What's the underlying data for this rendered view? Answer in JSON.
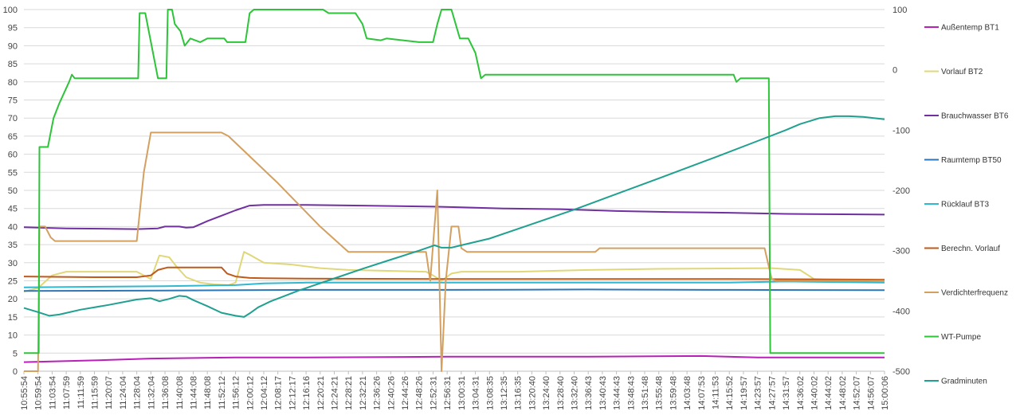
{
  "chart_data": {
    "type": "line",
    "title": "",
    "xlabel": "",
    "ylabel": "",
    "y2label": "",
    "ylim": [
      0,
      100
    ],
    "y2lim": [
      -500,
      100
    ],
    "yticks": [
      0,
      5,
      10,
      15,
      20,
      25,
      30,
      35,
      40,
      45,
      50,
      55,
      60,
      65,
      70,
      75,
      80,
      85,
      90,
      95,
      100
    ],
    "y2ticks": [
      -500,
      -400,
      -300,
      -200,
      -100,
      0,
      100
    ],
    "grid": "horizontal",
    "legend_position": "right",
    "x_tick_labels": [
      "10:55:54",
      "10:59:54",
      "11:03:54",
      "11:07:59",
      "11:11:59",
      "11:15:59",
      "11:20:07",
      "11:24:04",
      "11:28:04",
      "11:32:04",
      "11:36:08",
      "11:40:08",
      "11:44:08",
      "11:48:08",
      "11:52:12",
      "11:56:12",
      "12:00:12",
      "12:04:12",
      "12:08:17",
      "12:12:17",
      "12:16:16",
      "12:20:21",
      "12:24:21",
      "12:28:21",
      "12:32:21",
      "12:36:26",
      "12:40:26",
      "12:44:26",
      "12:48:26",
      "12:52:31",
      "12:56:31",
      "13:00:31",
      "13:04:31",
      "13:08:35",
      "13:12:35",
      "13:16:35",
      "13:20:40",
      "13:24:40",
      "13:28:40",
      "13:32:40",
      "13:36:43",
      "13:40:43",
      "13:44:43",
      "13:48:43",
      "13:51:48",
      "13:55:48",
      "13:59:48",
      "14:03:48",
      "14:07:53",
      "14:11:53",
      "14:15:52",
      "14:19:57",
      "14:23:57",
      "14:27:57",
      "14:31:57",
      "14:36:02",
      "14:40:02",
      "14:44:02",
      "14:48:02",
      "14:52:07",
      "14:56:07",
      "15:00:06"
    ],
    "series": [
      {
        "name": "Außentemp BT1",
        "color": "#b820b8",
        "axis": "left",
        "points": [
          [
            0,
            2.5
          ],
          [
            5,
            3
          ],
          [
            9,
            3.5
          ],
          [
            15,
            3.8
          ],
          [
            20,
            3.8
          ],
          [
            30,
            4
          ],
          [
            40,
            4
          ],
          [
            48,
            4.2
          ],
          [
            52,
            3.8
          ],
          [
            61,
            3.8
          ]
        ]
      },
      {
        "name": "Vorlauf BT2",
        "color": "#e0d878",
        "axis": "left",
        "points": [
          [
            0,
            22
          ],
          [
            1,
            23
          ],
          [
            2,
            26.5
          ],
          [
            3,
            27.5
          ],
          [
            5,
            27.5
          ],
          [
            8,
            27.5
          ],
          [
            9,
            25.5
          ],
          [
            9.6,
            32
          ],
          [
            10.3,
            31.5
          ],
          [
            10.8,
            29
          ],
          [
            11.5,
            26
          ],
          [
            12.5,
            24.5
          ],
          [
            13.5,
            24
          ],
          [
            14.5,
            23.8
          ],
          [
            15,
            24.5
          ],
          [
            15.6,
            33
          ],
          [
            16.1,
            32
          ],
          [
            17,
            30
          ],
          [
            19,
            29.5
          ],
          [
            21,
            28.5
          ],
          [
            23,
            28
          ],
          [
            28.5,
            27.5
          ],
          [
            29,
            26.5
          ],
          [
            29.6,
            25
          ],
          [
            30.3,
            27
          ],
          [
            31,
            27.5
          ],
          [
            35,
            27.5
          ],
          [
            40,
            28
          ],
          [
            45,
            28.3
          ],
          [
            53,
            28.5
          ],
          [
            55,
            28
          ],
          [
            56,
            25.5
          ],
          [
            58,
            25
          ],
          [
            61,
            24.8
          ]
        ]
      },
      {
        "name": "Brauchwasser BT6",
        "color": "#7030a0",
        "axis": "left",
        "points": [
          [
            0,
            39.8
          ],
          [
            3,
            39.5
          ],
          [
            8,
            39.3
          ],
          [
            9.5,
            39.5
          ],
          [
            10,
            40
          ],
          [
            11,
            40
          ],
          [
            11.5,
            39.7
          ],
          [
            12,
            39.8
          ],
          [
            13,
            41.5
          ],
          [
            14,
            43
          ],
          [
            15,
            44.5
          ],
          [
            16,
            45.8
          ],
          [
            17,
            46
          ],
          [
            20,
            46
          ],
          [
            24,
            45.8
          ],
          [
            29,
            45.5
          ],
          [
            31,
            45.3
          ],
          [
            34,
            45
          ],
          [
            38,
            44.8
          ],
          [
            42,
            44.3
          ],
          [
            46,
            44
          ],
          [
            50,
            43.8
          ],
          [
            54,
            43.5
          ],
          [
            58,
            43.4
          ],
          [
            61,
            43.3
          ]
        ]
      },
      {
        "name": "Raumtemp BT50",
        "color": "#2e75b6",
        "axis": "left",
        "points": [
          [
            0,
            22.2
          ],
          [
            10,
            22.3
          ],
          [
            20,
            22.5
          ],
          [
            30,
            22.5
          ],
          [
            40,
            22.6
          ],
          [
            50,
            22.5
          ],
          [
            61,
            22.4
          ]
        ]
      },
      {
        "name": "Rücklauf BT3",
        "color": "#30b8d0",
        "axis": "left",
        "points": [
          [
            0,
            23.2
          ],
          [
            10,
            23.5
          ],
          [
            15,
            23.8
          ],
          [
            17,
            24.3
          ],
          [
            20,
            24.5
          ],
          [
            30,
            24.5
          ],
          [
            40,
            24.5
          ],
          [
            50,
            24.5
          ],
          [
            54,
            24.8
          ],
          [
            61,
            24.5
          ]
        ]
      },
      {
        "name": "Berechn. Vorlauf",
        "color": "#c05a1a",
        "axis": "left",
        "points": [
          [
            0,
            26.2
          ],
          [
            5,
            26
          ],
          [
            8,
            26
          ],
          [
            9,
            26.5
          ],
          [
            9.5,
            28
          ],
          [
            10.2,
            28.7
          ],
          [
            14,
            28.7
          ],
          [
            14.4,
            27
          ],
          [
            15,
            26.2
          ],
          [
            16,
            25.8
          ],
          [
            17,
            25.7
          ],
          [
            20,
            25.6
          ],
          [
            30,
            25.5
          ],
          [
            40,
            25.5
          ],
          [
            50,
            25.5
          ],
          [
            61,
            25.3
          ]
        ]
      },
      {
        "name": "Verdichterfrequenz",
        "color": "#d4a060",
        "axis": "left",
        "points": [
          [
            0,
            0
          ],
          [
            1,
            0
          ],
          [
            1.1,
            40
          ],
          [
            1.5,
            40
          ],
          [
            1.9,
            37
          ],
          [
            2.2,
            36
          ],
          [
            8,
            36
          ],
          [
            8.5,
            55
          ],
          [
            9,
            66
          ],
          [
            14,
            66
          ],
          [
            14.5,
            65
          ],
          [
            18,
            52
          ],
          [
            21,
            40
          ],
          [
            23,
            33
          ],
          [
            28.5,
            33
          ],
          [
            28.8,
            25
          ],
          [
            29.3,
            50
          ],
          [
            29.6,
            0
          ],
          [
            29.9,
            25
          ],
          [
            30.3,
            40
          ],
          [
            30.8,
            40
          ],
          [
            31,
            34
          ],
          [
            31.4,
            33
          ],
          [
            40.5,
            33
          ],
          [
            40.8,
            34
          ],
          [
            52.5,
            34
          ],
          [
            53,
            25.5
          ],
          [
            53.3,
            25
          ],
          [
            56,
            25
          ],
          [
            61,
            25
          ]
        ]
      },
      {
        "name": "WT-Pumpe",
        "color": "#2ec43a",
        "axis": "left",
        "points": [
          [
            0,
            5
          ],
          [
            1.05,
            5
          ],
          [
            1.1,
            62
          ],
          [
            1.7,
            62
          ],
          [
            2.1,
            70
          ],
          [
            2.5,
            74
          ],
          [
            3.2,
            80
          ],
          [
            3.4,
            82
          ],
          [
            3.6,
            81
          ],
          [
            8.1,
            81
          ],
          [
            8.2,
            99
          ],
          [
            8.6,
            99
          ],
          [
            9.2,
            87
          ],
          [
            9.5,
            81
          ],
          [
            10.1,
            81
          ],
          [
            10.2,
            100
          ],
          [
            10.5,
            100
          ],
          [
            10.7,
            96
          ],
          [
            11.1,
            94
          ],
          [
            11.4,
            90
          ],
          [
            11.8,
            92
          ],
          [
            12.5,
            91
          ],
          [
            13,
            92
          ],
          [
            14.2,
            92
          ],
          [
            14.4,
            91
          ],
          [
            15.7,
            91
          ],
          [
            16,
            99
          ],
          [
            16.3,
            100
          ],
          [
            21.2,
            100
          ],
          [
            21.6,
            99
          ],
          [
            23.5,
            99
          ],
          [
            24,
            96
          ],
          [
            24.3,
            92
          ],
          [
            25.3,
            91.5
          ],
          [
            25.7,
            92
          ],
          [
            28,
            91
          ],
          [
            29,
            91
          ],
          [
            29.3,
            96
          ],
          [
            29.6,
            100
          ],
          [
            30.3,
            100
          ],
          [
            30.6,
            96
          ],
          [
            30.9,
            92
          ],
          [
            31.5,
            92
          ],
          [
            32,
            88
          ],
          [
            32.4,
            81
          ],
          [
            32.7,
            82
          ],
          [
            50.3,
            82
          ],
          [
            50.5,
            80
          ],
          [
            50.8,
            81
          ],
          [
            52.4,
            81
          ],
          [
            52.8,
            81
          ],
          [
            52.9,
            5
          ],
          [
            61,
            5
          ]
        ]
      },
      {
        "name": "Gradminuten",
        "color": "#20a090",
        "axis": "right",
        "points": [
          [
            0,
            -395
          ],
          [
            1,
            -402
          ],
          [
            1.8,
            -408
          ],
          [
            2.5,
            -406
          ],
          [
            4,
            -398
          ],
          [
            6,
            -390
          ],
          [
            8,
            -381
          ],
          [
            9,
            -379
          ],
          [
            9.6,
            -384
          ],
          [
            10.3,
            -380
          ],
          [
            11,
            -375
          ],
          [
            11.5,
            -376
          ],
          [
            12,
            -382
          ],
          [
            13,
            -392
          ],
          [
            14,
            -403
          ],
          [
            15,
            -408
          ],
          [
            15.6,
            -410
          ],
          [
            16,
            -404
          ],
          [
            16.6,
            -394
          ],
          [
            17.5,
            -384
          ],
          [
            18.5,
            -375
          ],
          [
            19.5,
            -366
          ],
          [
            20.5,
            -358
          ],
          [
            22,
            -346
          ],
          [
            24,
            -330
          ],
          [
            26,
            -315
          ],
          [
            28,
            -300
          ],
          [
            29.1,
            -291
          ],
          [
            29.6,
            -295
          ],
          [
            30.3,
            -295
          ],
          [
            31,
            -291
          ],
          [
            33,
            -280
          ],
          [
            39,
            -232
          ],
          [
            45,
            -180
          ],
          [
            49,
            -145
          ],
          [
            52,
            -118
          ],
          [
            54,
            -100
          ],
          [
            55,
            -90
          ],
          [
            56.4,
            -80
          ],
          [
            57.5,
            -77
          ],
          [
            58.5,
            -77
          ],
          [
            59.5,
            -78
          ],
          [
            61,
            -82
          ]
        ]
      }
    ]
  }
}
